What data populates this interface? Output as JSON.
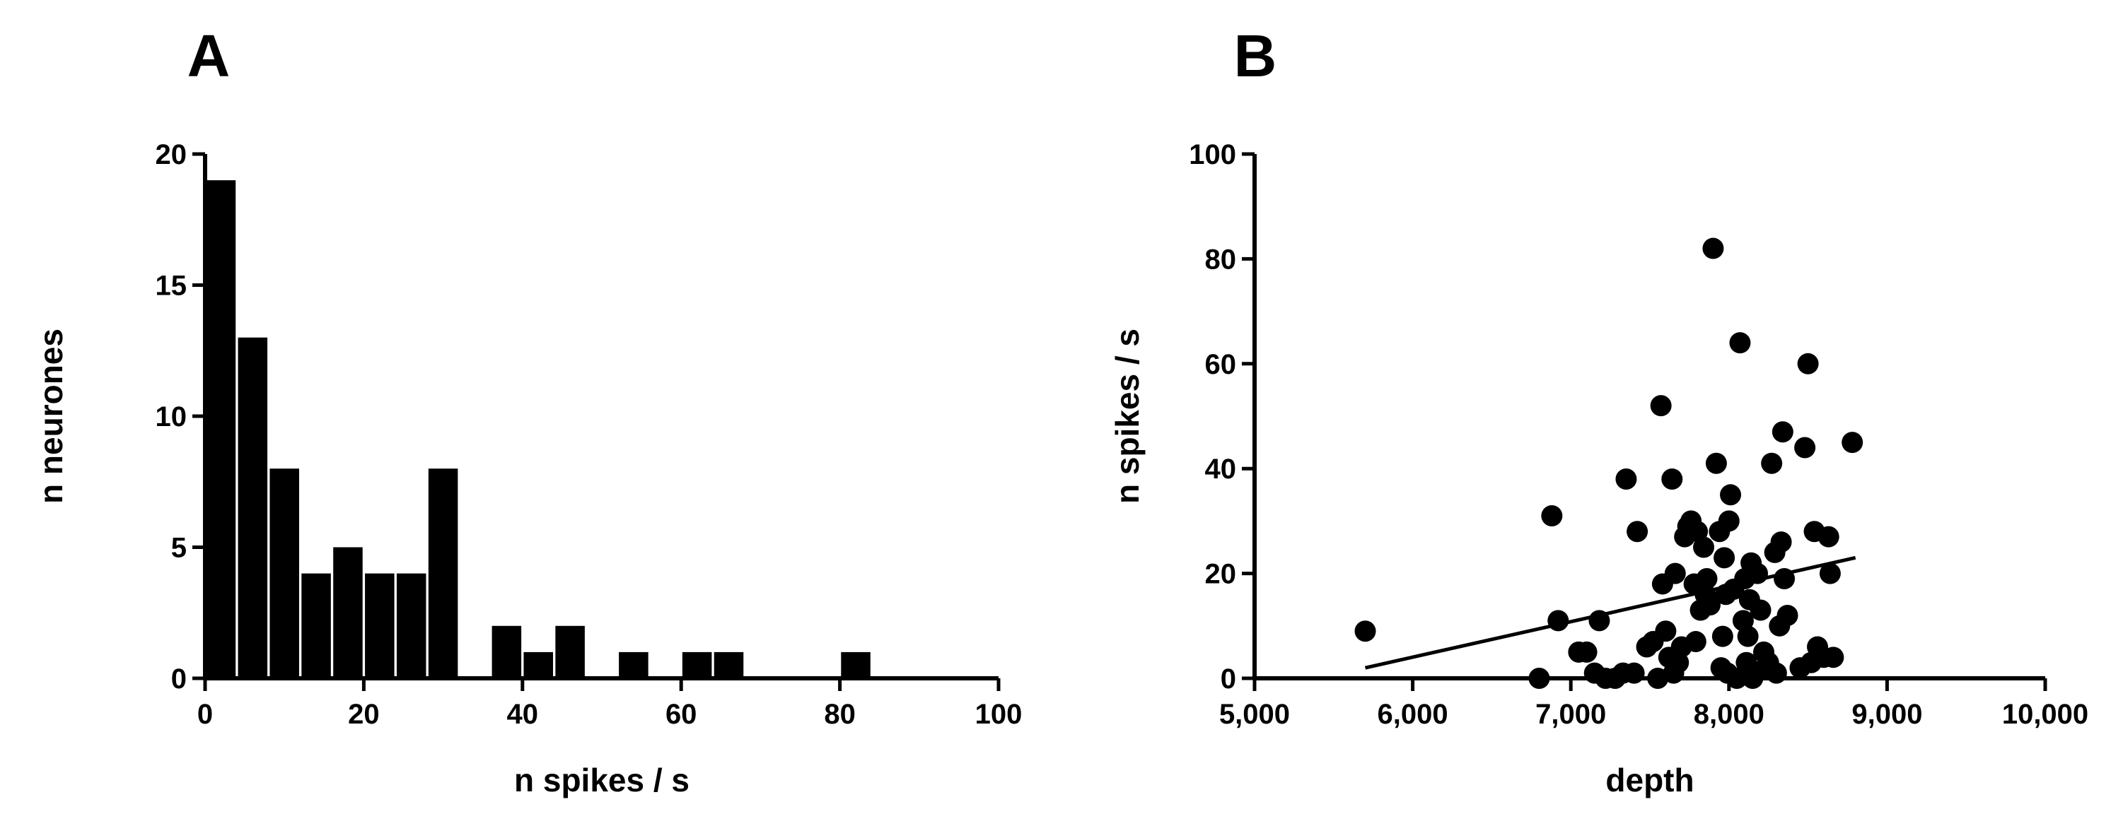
{
  "chart_data": [
    {
      "panel_label": "A",
      "type": "bar",
      "title": "",
      "xlabel": "n spikes / s",
      "ylabel": "n neurones",
      "xlim": [
        0,
        100
      ],
      "ylim": [
        0,
        20
      ],
      "x_ticks": [
        0,
        20,
        40,
        60,
        80,
        100
      ],
      "y_ticks": [
        0,
        5,
        10,
        15,
        20
      ],
      "x_tick_labels": [
        "0",
        "20",
        "40",
        "60",
        "80",
        "100"
      ],
      "y_tick_labels": [
        "0",
        "5",
        "10",
        "15",
        "20"
      ],
      "bin_width": 4,
      "bins": [
        {
          "x": 2,
          "count": 19
        },
        {
          "x": 6,
          "count": 13
        },
        {
          "x": 10,
          "count": 8
        },
        {
          "x": 14,
          "count": 4
        },
        {
          "x": 18,
          "count": 5
        },
        {
          "x": 22,
          "count": 4
        },
        {
          "x": 26,
          "count": 4
        },
        {
          "x": 30,
          "count": 8
        },
        {
          "x": 38,
          "count": 2
        },
        {
          "x": 42,
          "count": 1
        },
        {
          "x": 46,
          "count": 2
        },
        {
          "x": 54,
          "count": 1
        },
        {
          "x": 62,
          "count": 1
        },
        {
          "x": 66,
          "count": 1
        },
        {
          "x": 82,
          "count": 1
        }
      ],
      "grid": false
    },
    {
      "panel_label": "B",
      "type": "scatter",
      "title": "",
      "xlabel": "depth",
      "ylabel": "n spikes / s",
      "xlim": [
        5000,
        10000
      ],
      "ylim": [
        0,
        100
      ],
      "x_ticks": [
        5000,
        6000,
        7000,
        8000,
        9000,
        10000
      ],
      "y_ticks": [
        0,
        20,
        40,
        60,
        80,
        100
      ],
      "x_tick_labels": [
        "5,000",
        "6,000",
        "7,000",
        "8,000",
        "9,000",
        "10,000"
      ],
      "y_tick_labels": [
        "0",
        "20",
        "40",
        "60",
        "80",
        "100"
      ],
      "points": [
        [
          5700,
          9
        ],
        [
          6800,
          0
        ],
        [
          6880,
          31
        ],
        [
          6920,
          11
        ],
        [
          7050,
          5
        ],
        [
          7100,
          5
        ],
        [
          7150,
          1
        ],
        [
          7180,
          11
        ],
        [
          7220,
          0
        ],
        [
          7280,
          0
        ],
        [
          7330,
          1
        ],
        [
          7350,
          38
        ],
        [
          7400,
          1
        ],
        [
          7420,
          28
        ],
        [
          7480,
          6
        ],
        [
          7520,
          7
        ],
        [
          7550,
          0
        ],
        [
          7570,
          52
        ],
        [
          7580,
          18
        ],
        [
          7600,
          9
        ],
        [
          7620,
          4
        ],
        [
          7640,
          38
        ],
        [
          7650,
          1
        ],
        [
          7660,
          20
        ],
        [
          7680,
          3
        ],
        [
          7700,
          6
        ],
        [
          7720,
          27
        ],
        [
          7740,
          29
        ],
        [
          7760,
          30
        ],
        [
          7780,
          18
        ],
        [
          7790,
          7
        ],
        [
          7800,
          28
        ],
        [
          7820,
          13
        ],
        [
          7840,
          25
        ],
        [
          7850,
          16
        ],
        [
          7860,
          19
        ],
        [
          7880,
          14
        ],
        [
          7900,
          82
        ],
        [
          7920,
          41
        ],
        [
          7940,
          28
        ],
        [
          7950,
          2
        ],
        [
          7960,
          8
        ],
        [
          7970,
          23
        ],
        [
          7980,
          16
        ],
        [
          7990,
          1
        ],
        [
          8000,
          30
        ],
        [
          8010,
          35
        ],
        [
          8030,
          17
        ],
        [
          8050,
          0
        ],
        [
          8070,
          64
        ],
        [
          8090,
          11
        ],
        [
          8100,
          19
        ],
        [
          8110,
          3
        ],
        [
          8120,
          8
        ],
        [
          8130,
          15
        ],
        [
          8140,
          22
        ],
        [
          8150,
          0
        ],
        [
          8180,
          20
        ],
        [
          8200,
          13
        ],
        [
          8220,
          5
        ],
        [
          8230,
          2
        ],
        [
          8250,
          3
        ],
        [
          8270,
          41
        ],
        [
          8290,
          24
        ],
        [
          8300,
          1
        ],
        [
          8320,
          10
        ],
        [
          8330,
          26
        ],
        [
          8340,
          47
        ],
        [
          8350,
          19
        ],
        [
          8370,
          12
        ],
        [
          8450,
          2
        ],
        [
          8480,
          44
        ],
        [
          8500,
          60
        ],
        [
          8520,
          3
        ],
        [
          8540,
          28
        ],
        [
          8560,
          6
        ],
        [
          8600,
          4
        ],
        [
          8630,
          27
        ],
        [
          8640,
          20
        ],
        [
          8660,
          4
        ],
        [
          8780,
          45
        ]
      ],
      "fit_line": {
        "x": [
          5700,
          8800
        ],
        "y": [
          2,
          23
        ]
      },
      "grid": false
    }
  ]
}
